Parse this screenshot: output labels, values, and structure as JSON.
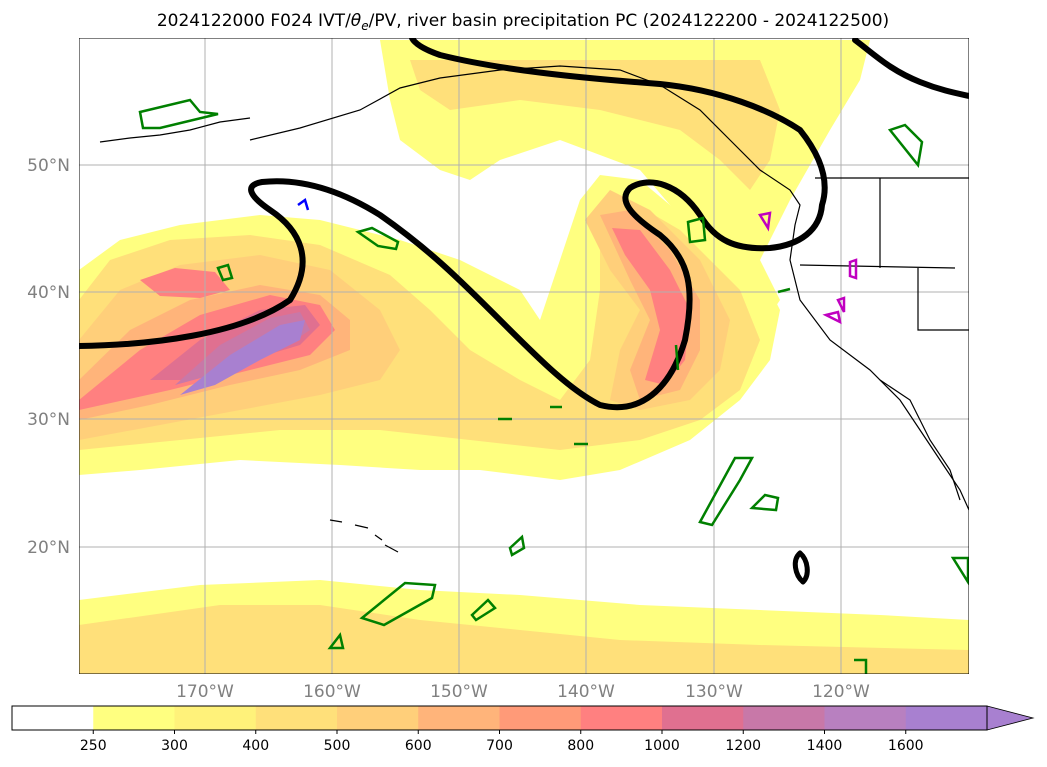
{
  "title": "2024122000 F024 IVT/",
  "title_theta": "θ",
  "title_theta_sub": "e",
  "title_rest": "/PV, river basin precipitation PC (2024122200 - 2024122500)",
  "lat_labels": [
    "50°N",
    "40°N",
    "30°N",
    "20°N"
  ],
  "lon_labels": [
    "170°W",
    "160°W",
    "150°W",
    "140°W",
    "130°W",
    "120°W"
  ],
  "colorbar": {
    "labels": [
      "250",
      "300",
      "400",
      "500",
      "600",
      "700",
      "800",
      "1000",
      "1200",
      "1400",
      "1600"
    ],
    "colors": [
      "#ffffff",
      "#ffff80",
      "#fff27a",
      "#ffe07a",
      "#ffcf7a",
      "#ffb47a",
      "#ff9a78",
      "#ff8080",
      "#e07090",
      "#c878a8",
      "#b880c0",
      "#a880d0"
    ],
    "extend": "max"
  },
  "legend_colors": {
    "pv_contour": "#000000",
    "precip_green": "#008000",
    "precip_magenta": "#c000c0",
    "precip_blue": "#0000ff",
    "gridlines": "#b0b0b0",
    "coastline": "#000000"
  }
}
